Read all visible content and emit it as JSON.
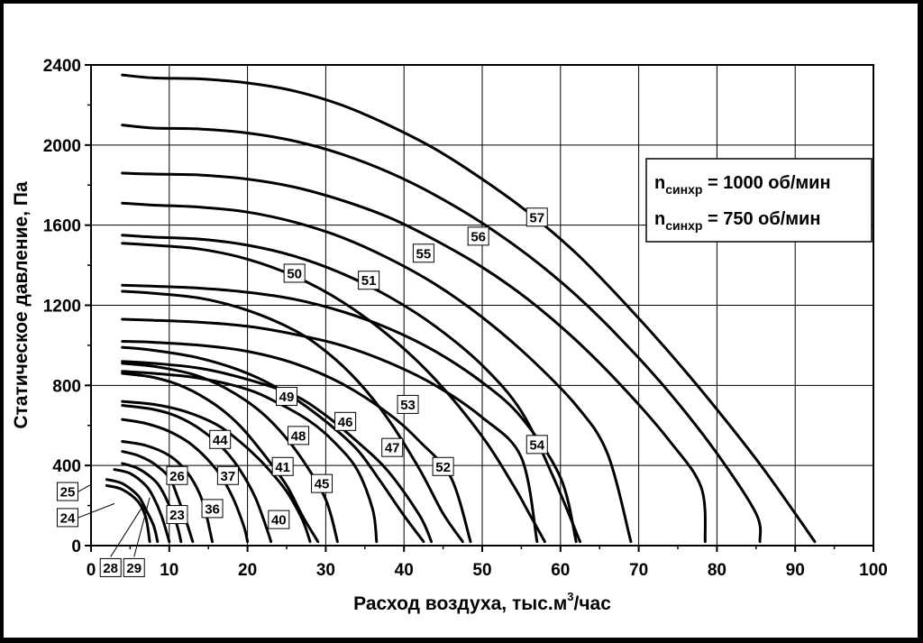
{
  "chart_data": {
    "type": "line",
    "title": "",
    "xlabel": "Расход воздуха, тыс.м",
    "xlabel_sup": "3",
    "xlabel_tail": "/час",
    "ylabel": "Статическое давление, Па",
    "xlim": [
      0,
      100
    ],
    "ylim": [
      0,
      2400
    ],
    "x_ticks": [
      "0",
      "10",
      "20",
      "30",
      "40",
      "50",
      "60",
      "70",
      "80",
      "90",
      "100"
    ],
    "y_ticks": [
      "0",
      "400",
      "800",
      "1200",
      "1600",
      "2000",
      "2400"
    ],
    "grid": true,
    "legend": {
      "placement": "top-right",
      "entries": [
        {
          "prefix": "n",
          "sub": "синхр",
          "text": " = 1000 об/мин"
        },
        {
          "prefix": "n",
          "sub": "синхр",
          "text": " = 750 об/мин"
        }
      ]
    },
    "series": [
      {
        "name": "57",
        "label_at": [
          57,
          1640
        ],
        "points": [
          [
            4,
            2350
          ],
          [
            8,
            2335
          ],
          [
            14,
            2330
          ],
          [
            20,
            2310
          ],
          [
            26,
            2270
          ],
          [
            32,
            2200
          ],
          [
            38,
            2100
          ],
          [
            44,
            1980
          ],
          [
            50,
            1830
          ],
          [
            56,
            1660
          ],
          [
            62,
            1460
          ],
          [
            68,
            1220
          ],
          [
            74,
            960
          ],
          [
            80,
            680
          ],
          [
            86,
            380
          ],
          [
            92.5,
            20
          ]
        ]
      },
      {
        "name": "56",
        "label_at": [
          49.5,
          1545
        ],
        "points": [
          [
            4,
            2100
          ],
          [
            8,
            2085
          ],
          [
            14,
            2080
          ],
          [
            20,
            2060
          ],
          [
            26,
            2020
          ],
          [
            32,
            1955
          ],
          [
            38,
            1865
          ],
          [
            44,
            1750
          ],
          [
            50,
            1610
          ],
          [
            56,
            1445
          ],
          [
            62,
            1250
          ],
          [
            68,
            1020
          ],
          [
            74,
            760
          ],
          [
            80,
            460
          ],
          [
            85,
            160
          ],
          [
            85.5,
            20
          ]
        ]
      },
      {
        "name": "55",
        "label_at": [
          42.5,
          1460
        ],
        "points": [
          [
            4,
            1860
          ],
          [
            8,
            1855
          ],
          [
            14,
            1850
          ],
          [
            20,
            1830
          ],
          [
            26,
            1790
          ],
          [
            32,
            1725
          ],
          [
            38,
            1640
          ],
          [
            44,
            1525
          ],
          [
            50,
            1390
          ],
          [
            56,
            1225
          ],
          [
            62,
            1025
          ],
          [
            68,
            790
          ],
          [
            74,
            520
          ],
          [
            78,
            290
          ],
          [
            78.5,
            20
          ]
        ]
      },
      {
        "name": "51",
        "label_at": [
          35.5,
          1325
        ],
        "points": [
          [
            4,
            1710
          ],
          [
            8,
            1700
          ],
          [
            14,
            1690
          ],
          [
            20,
            1665
          ],
          [
            26,
            1615
          ],
          [
            32,
            1540
          ],
          [
            38,
            1435
          ],
          [
            44,
            1305
          ],
          [
            50,
            1140
          ],
          [
            56,
            940
          ],
          [
            62,
            700
          ],
          [
            66,
            460
          ],
          [
            69,
            20
          ]
        ]
      },
      {
        "name": "50",
        "label_at": [
          26,
          1360
        ],
        "points": [
          [
            4,
            1550
          ],
          [
            8,
            1540
          ],
          [
            14,
            1530
          ],
          [
            20,
            1500
          ],
          [
            26,
            1445
          ],
          [
            32,
            1360
          ],
          [
            38,
            1245
          ],
          [
            44,
            1095
          ],
          [
            50,
            900
          ],
          [
            55,
            670
          ],
          [
            59,
            350
          ],
          [
            62.5,
            20
          ]
        ]
      },
      {
        "name": "53",
        "label_at": [
          40.5,
          705
        ],
        "points": [
          [
            4,
            1510
          ],
          [
            8,
            1500
          ],
          [
            14,
            1480
          ],
          [
            20,
            1430
          ],
          [
            26,
            1345
          ],
          [
            32,
            1220
          ],
          [
            38,
            1050
          ],
          [
            44,
            830
          ],
          [
            50,
            545
          ],
          [
            54,
            300
          ],
          [
            56,
            160
          ],
          [
            58,
            20
          ]
        ]
      },
      {
        "name": "54",
        "label_at": [
          57,
          505
        ],
        "points": [
          [
            4,
            1300
          ],
          [
            8,
            1295
          ],
          [
            14,
            1285
          ],
          [
            20,
            1265
          ],
          [
            26,
            1230
          ],
          [
            32,
            1170
          ],
          [
            38,
            1085
          ],
          [
            44,
            970
          ],
          [
            50,
            815
          ],
          [
            55,
            640
          ],
          [
            60,
            340
          ],
          [
            62,
            20
          ]
        ]
      },
      {
        "name": "52",
        "label_at": [
          45,
          395
        ],
        "points": [
          [
            4,
            1130
          ],
          [
            8,
            1125
          ],
          [
            14,
            1115
          ],
          [
            20,
            1095
          ],
          [
            26,
            1055
          ],
          [
            32,
            1000
          ],
          [
            38,
            915
          ],
          [
            44,
            800
          ],
          [
            50,
            640
          ],
          [
            55,
            440
          ],
          [
            57,
            20
          ]
        ]
      },
      {
        "name": "46",
        "label_at": [
          32.5,
          620
        ],
        "points": [
          [
            4,
            1270
          ],
          [
            8,
            1260
          ],
          [
            14,
            1235
          ],
          [
            20,
            1175
          ],
          [
            26,
            1075
          ],
          [
            30,
            970
          ],
          [
            34,
            825
          ],
          [
            38,
            630
          ],
          [
            42,
            380
          ],
          [
            45,
            160
          ],
          [
            47.5,
            20
          ]
        ]
      },
      {
        "name": "47",
        "label_at": [
          38.5,
          490
        ],
        "points": [
          [
            4,
            1020
          ],
          [
            8,
            1015
          ],
          [
            14,
            1000
          ],
          [
            20,
            970
          ],
          [
            26,
            910
          ],
          [
            32,
            810
          ],
          [
            38,
            660
          ],
          [
            42,
            520
          ],
          [
            46,
            340
          ],
          [
            48.5,
            20
          ]
        ]
      },
      {
        "name": "49",
        "label_at": [
          25,
          745
        ],
        "points": [
          [
            4,
            990
          ],
          [
            8,
            975
          ],
          [
            14,
            935
          ],
          [
            20,
            860
          ],
          [
            25,
            760
          ],
          [
            30,
            620
          ],
          [
            34,
            480
          ],
          [
            37,
            320
          ],
          [
            40,
            150
          ],
          [
            42.5,
            20
          ]
        ]
      },
      {
        "name": "48",
        "label_at": [
          26.5,
          550
        ],
        "points": [
          [
            4,
            920
          ],
          [
            8,
            910
          ],
          [
            14,
            885
          ],
          [
            20,
            830
          ],
          [
            26,
            750
          ],
          [
            30,
            650
          ],
          [
            34,
            520
          ],
          [
            38,
            370
          ],
          [
            42,
            150
          ],
          [
            43.5,
            20
          ]
        ]
      },
      {
        "name": "45",
        "label_at": [
          29.5,
          310
        ],
        "points": [
          [
            4,
            870
          ],
          [
            8,
            860
          ],
          [
            14,
            835
          ],
          [
            20,
            780
          ],
          [
            24,
            710
          ],
          [
            28,
            620
          ],
          [
            31,
            520
          ],
          [
            34,
            380
          ],
          [
            36,
            180
          ],
          [
            36.5,
            20
          ]
        ]
      },
      {
        "name": "41",
        "label_at": [
          24.5,
          395
        ],
        "points": [
          [
            4,
            910
          ],
          [
            8,
            895
          ],
          [
            13,
            855
          ],
          [
            17,
            790
          ],
          [
            21,
            690
          ],
          [
            24,
            580
          ],
          [
            27,
            430
          ],
          [
            30,
            230
          ],
          [
            31.5,
            20
          ]
        ]
      },
      {
        "name": "44",
        "label_at": [
          16.5,
          530
        ],
        "points": [
          [
            4,
            860
          ],
          [
            8,
            840
          ],
          [
            12,
            790
          ],
          [
            16,
            700
          ],
          [
            19,
            600
          ],
          [
            22,
            460
          ],
          [
            25,
            300
          ],
          [
            27,
            150
          ],
          [
            29,
            20
          ]
        ]
      },
      {
        "name": "40",
        "label_at": [
          24,
          130
        ],
        "points": [
          [
            4,
            720
          ],
          [
            8,
            705
          ],
          [
            12,
            670
          ],
          [
            16,
            605
          ],
          [
            19,
            520
          ],
          [
            22,
            410
          ],
          [
            25,
            270
          ],
          [
            27,
            130
          ],
          [
            28,
            20
          ]
        ]
      },
      {
        "name": "37",
        "label_at": [
          17.5,
          350
        ],
        "points": [
          [
            4,
            700
          ],
          [
            8,
            680
          ],
          [
            11,
            645
          ],
          [
            14,
            580
          ],
          [
            17,
            480
          ],
          [
            19,
            380
          ],
          [
            21,
            240
          ],
          [
            22.5,
            80
          ],
          [
            23,
            20
          ]
        ]
      },
      {
        "name": "36",
        "label_at": [
          15.5,
          185
        ],
        "points": [
          [
            4,
            630
          ],
          [
            7,
            610
          ],
          [
            10,
            570
          ],
          [
            13,
            500
          ],
          [
            16,
            380
          ],
          [
            18,
            250
          ],
          [
            19.5,
            100
          ],
          [
            20,
            20
          ]
        ]
      },
      {
        "name": "26",
        "label_at": [
          11,
          350
        ],
        "points": [
          [
            4,
            520
          ],
          [
            7,
            500
          ],
          [
            10,
            450
          ],
          [
            12,
            380
          ],
          [
            13.5,
            290
          ],
          [
            14.5,
            190
          ],
          [
            15.5,
            20
          ]
        ]
      },
      {
        "name": "23",
        "label_at": [
          11,
          155
        ],
        "points": [
          [
            4,
            470
          ],
          [
            6,
            450
          ],
          [
            8,
            410
          ],
          [
            10,
            340
          ],
          [
            11,
            250
          ],
          [
            12,
            140
          ],
          [
            13,
            20
          ]
        ]
      },
      {
        "name": "25",
        "label_at": [
          -3,
          270
        ],
        "anchor": [
          0,
          305
        ],
        "points": [
          [
            4,
            410
          ],
          [
            6,
            385
          ],
          [
            8,
            330
          ],
          [
            9,
            280
          ],
          [
            10,
            200
          ],
          [
            11,
            100
          ],
          [
            11.5,
            20
          ]
        ]
      },
      {
        "name": "24",
        "label_at": [
          -3,
          140
        ],
        "anchor": [
          3,
          210
        ],
        "points": [
          [
            3,
            380
          ],
          [
            5,
            360
          ],
          [
            7,
            300
          ],
          [
            8,
            240
          ],
          [
            9,
            150
          ],
          [
            10,
            20
          ]
        ]
      },
      {
        "name": "28",
        "label_at": [
          2.5,
          -110
        ],
        "anchor": [
          6.5,
          190
        ],
        "points": [
          [
            2,
            330
          ],
          [
            4,
            310
          ],
          [
            6,
            250
          ],
          [
            7,
            180
          ],
          [
            8,
            100
          ],
          [
            8.5,
            20
          ]
        ]
      },
      {
        "name": "29",
        "label_at": [
          5.5,
          -110
        ],
        "anchor": [
          7.5,
          240
        ],
        "points": [
          [
            2,
            300
          ],
          [
            4,
            280
          ],
          [
            6,
            220
          ],
          [
            7,
            140
          ],
          [
            7.5,
            20
          ]
        ]
      }
    ]
  }
}
